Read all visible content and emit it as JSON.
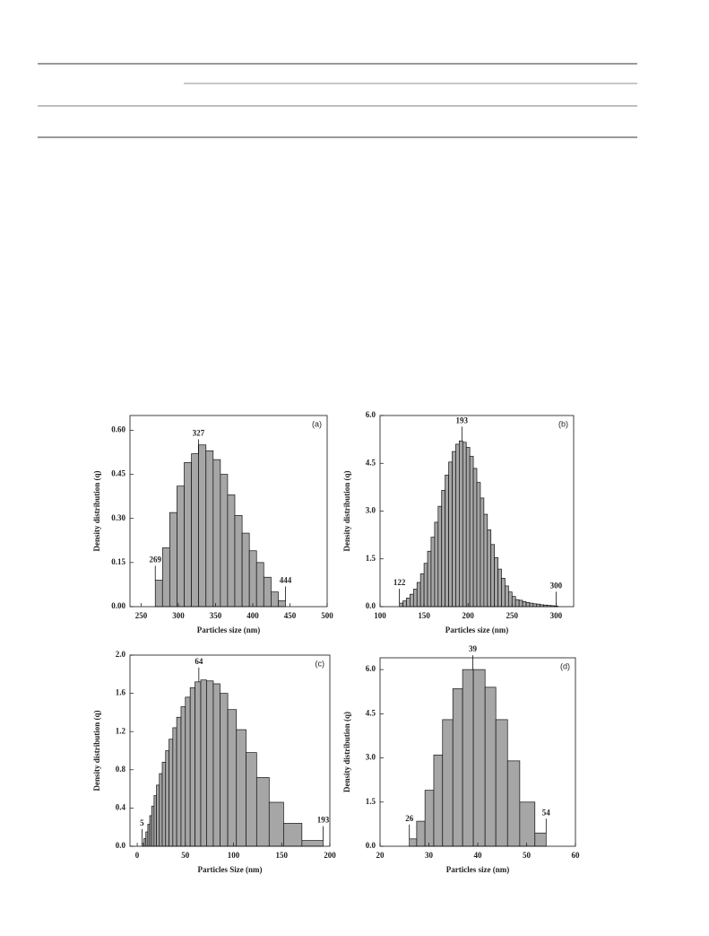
{
  "chart_data": [
    {
      "type": "histogram",
      "panel": "(a)",
      "xlabel": "Particles size (nm)",
      "ylabel": "Density distribution (q)",
      "color": "#a6a6a6",
      "bins": [
        269,
        278.7,
        288.4,
        298.2,
        307.9,
        317.6,
        327.3,
        337.1,
        346.8,
        356.5,
        366.2,
        375.9,
        385.7,
        395.4,
        405.1,
        414.8,
        424.6,
        434.3,
        444
      ],
      "counts": [
        0.09,
        0.2,
        0.32,
        0.41,
        0.49,
        0.52,
        0.55,
        0.53,
        0.5,
        0.45,
        0.38,
        0.31,
        0.25,
        0.19,
        0.15,
        0.1,
        0.05,
        0.02
      ],
      "markers": [
        269,
        327,
        444
      ],
      "xlim": [
        235,
        500
      ],
      "xticks": [
        250,
        300,
        350,
        400,
        450,
        500
      ],
      "ylim": [
        0,
        0.65
      ],
      "yticks": [
        {
          "value": 0,
          "label": "0.00"
        },
        0.15,
        {
          "value": 0.3,
          "label": "0.30"
        },
        0.45,
        {
          "value": 0.6,
          "label": "0.60"
        }
      ]
    },
    {
      "type": "histogram",
      "panel": "(b)",
      "xlabel": "Particles size (nm)",
      "ylabel": "Density distribution (q)",
      "color": "#a6a6a6",
      "bins": [
        122,
        126,
        130,
        134,
        138,
        142,
        146,
        150,
        154,
        158,
        162,
        166,
        170,
        174,
        178,
        182,
        186,
        190,
        194,
        198,
        202,
        206,
        210,
        214,
        218,
        222,
        226,
        230,
        234,
        238,
        242,
        246,
        250,
        254,
        258,
        262,
        266,
        270,
        274,
        278,
        282,
        286,
        290,
        294,
        298,
        302
      ],
      "counts": [
        0.11,
        0.18,
        0.27,
        0.39,
        0.55,
        0.76,
        1.03,
        1.36,
        1.74,
        2.18,
        2.65,
        3.15,
        3.65,
        4.13,
        4.54,
        4.87,
        5.1,
        5.2,
        5.16,
        5.0,
        4.72,
        4.34,
        3.9,
        3.41,
        2.9,
        2.41,
        1.95,
        1.54,
        1.18,
        0.89,
        0.65,
        0.46,
        0.32,
        0.22,
        0.2,
        0.16,
        0.13,
        0.11,
        0.09,
        0.08,
        0.06,
        0.05,
        0.04,
        0.03,
        0.02
      ],
      "markers": [
        122,
        193,
        300
      ],
      "xlim": [
        100,
        320
      ],
      "xticks": [
        100,
        150,
        200,
        250,
        300
      ],
      "ylim": [
        0,
        6
      ],
      "yticks": [
        {
          "value": 0,
          "label": "0.0"
        },
        1.5,
        {
          "value": 3,
          "label": "3.0"
        },
        4.5,
        {
          "value": 6,
          "label": "6.0"
        }
      ]
    },
    {
      "type": "histogram",
      "panel": "(c)",
      "xlabel": "Particles Size (nm)",
      "ylabel": "Density distribution (q)",
      "color": "#a6a6a6",
      "bins": [
        5,
        7,
        9,
        11,
        13,
        15,
        17.5,
        20,
        23,
        26,
        29.5,
        33,
        37,
        41,
        45.5,
        50,
        55,
        60,
        66,
        72,
        79,
        86,
        94,
        103,
        113,
        124,
        137,
        152,
        171,
        193
      ],
      "counts": [
        0.03,
        0.08,
        0.15,
        0.23,
        0.32,
        0.42,
        0.53,
        0.64,
        0.76,
        0.88,
        1.0,
        1.12,
        1.24,
        1.35,
        1.46,
        1.56,
        1.66,
        1.72,
        1.74,
        1.73,
        1.7,
        1.6,
        1.43,
        1.22,
        0.98,
        0.72,
        0.46,
        0.24,
        0.06
      ],
      "markers": [
        5,
        64,
        193
      ],
      "xlim": [
        -7.5,
        200
      ],
      "xticks": [
        0,
        50,
        100,
        150,
        200
      ],
      "ylim": [
        0,
        2
      ],
      "yticks": [
        {
          "value": 0,
          "label": "0.0"
        },
        0.4,
        0.8,
        1.2,
        1.6,
        {
          "value": 2,
          "label": "2.0"
        }
      ]
    },
    {
      "type": "histogram",
      "panel": "(d)",
      "xlabel": "Particles size (nm)",
      "ylabel": "Density distribution (q)",
      "color": "#a6a6a6",
      "bins": [
        26,
        27.5,
        29.2,
        31,
        32.8,
        34.9,
        36.9,
        39.1,
        41.5,
        43.7,
        46.1,
        48.6,
        51.7,
        54
      ],
      "counts": [
        0.25,
        0.85,
        1.9,
        3.1,
        4.3,
        5.35,
        6.0,
        6.0,
        5.4,
        4.3,
        2.9,
        1.5,
        0.45
      ],
      "markers": [
        26,
        39,
        54
      ],
      "xlim": [
        20,
        60
      ],
      "xticks": [
        20,
        30,
        40,
        50,
        60
      ],
      "ylim": [
        0,
        6.4
      ],
      "yticks": [
        {
          "value": 0,
          "label": "0.0"
        },
        1.5,
        {
          "value": 3,
          "label": "3.0"
        },
        4.5,
        {
          "value": 6,
          "label": "6.0"
        }
      ]
    }
  ]
}
